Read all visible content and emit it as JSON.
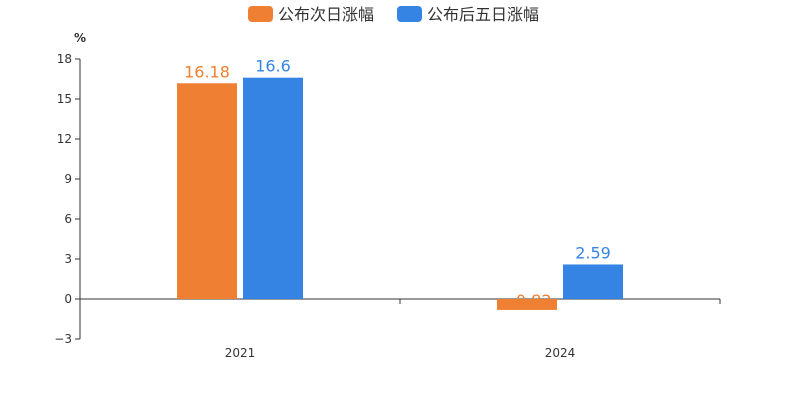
{
  "chart_data": {
    "type": "bar",
    "categories": [
      "2021",
      "2024"
    ],
    "series": [
      {
        "name": "公布次日涨幅",
        "values": [
          16.18,
          -0.82
        ],
        "labels": [
          "16.18",
          "−0.82"
        ],
        "color": "#ef8033"
      },
      {
        "name": "公布后五日涨幅",
        "values": [
          16.6,
          2.59
        ],
        "labels": [
          "16.6",
          "2.59"
        ],
        "color": "#3584e4"
      }
    ],
    "y_unit": "%",
    "ylim": [
      -3,
      18
    ],
    "yticks": [
      -3,
      0,
      3,
      6,
      9,
      12,
      15,
      18
    ],
    "ytick_labels": [
      "−3",
      "0",
      "3",
      "6",
      "9",
      "12",
      "15",
      "18"
    ],
    "grid": false,
    "legend_position": "top-center"
  }
}
